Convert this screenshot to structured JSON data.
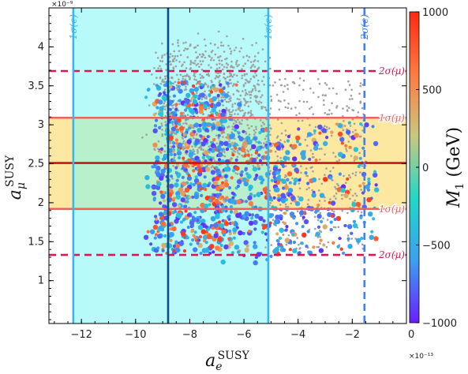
{
  "chart_data": {
    "type": "scatter",
    "xlabel": "a_e^SUSY",
    "ylabel": "a_μ^SUSY",
    "x_multiplier": "×10⁻¹³",
    "y_multiplier": "×10⁻⁹",
    "xlim": [
      -13.2,
      0
    ],
    "ylim": [
      0.45,
      4.5
    ],
    "x_ticks": [
      -12,
      -10,
      -8,
      -6,
      -4,
      -2,
      0
    ],
    "x_tick_labels": [
      "−12",
      "−10",
      "−8",
      "−6",
      "−4",
      "−2",
      "0"
    ],
    "y_ticks": [
      1,
      1.5,
      2,
      2.5,
      3,
      3.5,
      4
    ],
    "y_tick_labels": [
      "1",
      "1.5",
      "2",
      "2.5",
      "3",
      "3.5",
      "4"
    ],
    "colorbar": {
      "label": "M_1 (GeV)",
      "range": [
        -1000,
        1000
      ],
      "ticks": [
        1000,
        500,
        0,
        -500,
        -1000
      ],
      "tick_labels": [
        "1000",
        "500",
        "0",
        "−500",
        "−1000"
      ],
      "colors": [
        "#6a1fff",
        "#3aa0f0",
        "#20d8c8",
        "#c8c880",
        "#ff7a40",
        "#ff2a10"
      ]
    },
    "bands": {
      "ae_1sigma": [
        -12.3,
        -5.1
      ],
      "amu_1sigma": [
        1.92,
        3.09
      ],
      "amu_central": 2.51,
      "amu_2sigma": [
        1.33,
        3.69
      ],
      "ae_central": -8.8,
      "ae_2sigma_upper": -1.55
    },
    "annotations": {
      "ae_1sigma_left": "1σ(e)",
      "ae_1sigma_right": "1σ(e)",
      "ae_2sigma": "2σ(e)",
      "amu_2sigma_upper": "2σ(μ)",
      "amu_1sigma_upper": "1σ(μ)",
      "amu_1sigma_lower": "1σ(μ)",
      "amu_2sigma_lower": "2σ(μ)"
    },
    "band_colors": {
      "ae_band": "#b8fafa",
      "amu_band": "#fce8a0",
      "overlap": "#b8f0cc",
      "ae_line": "#35b8f0",
      "ae_center_line": "#0c4e8a",
      "ae_2sigma_line": "#3f82ee",
      "amu_line": "#f06060",
      "amu_center_line": "#c01818",
      "amu_2sigma_line": "#dd1550",
      "excluded_points": "#a0a0a0"
    },
    "series": [
      {
        "points_summary": "colored points (M_1 scale): dense cluster x≈-9.5…-4, y≈1.3…3.7; sparse tail x≈-4…-1, y≈1.4…3.1"
      },
      {
        "points_summary": "gray excluded points: dense x≈-9…-5.5, y≈2.4…4.0; sparse x≈-5…-1.5, y≈1.4…3.6"
      }
    ]
  }
}
